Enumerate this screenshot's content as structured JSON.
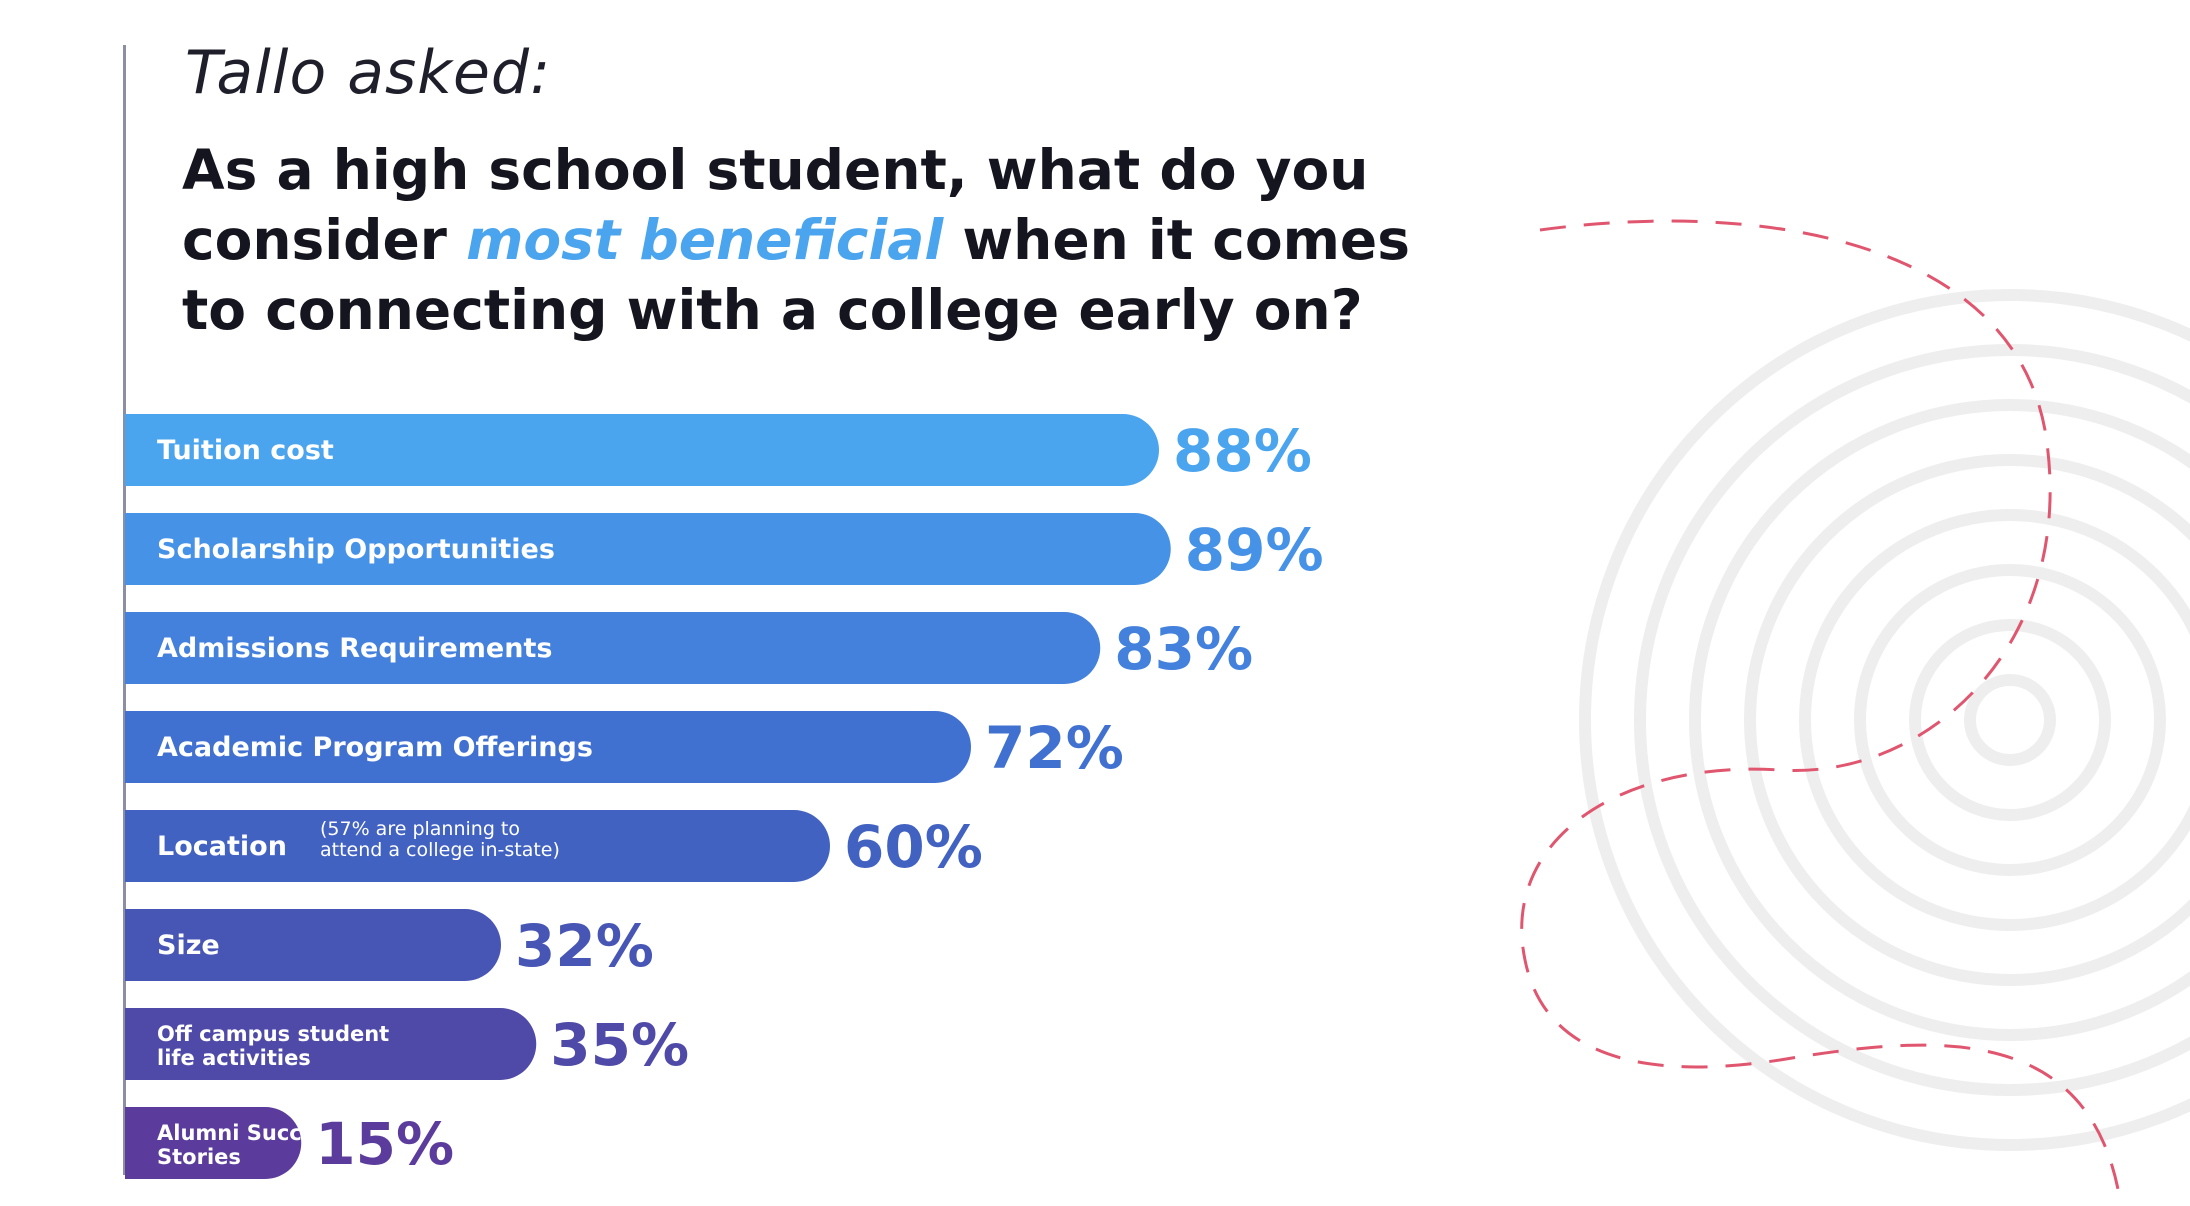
{
  "header": {
    "asked": "Tallo asked:",
    "question_part1": "As a high school student, what do you consider ",
    "question_highlight": "most beneficial",
    "question_part2": " when it comes to connecting with a college early on?"
  },
  "colors": {
    "highlight": "#4aa4ee",
    "decor_dashed": "#e0566f",
    "decor_rings": "#eeeeee",
    "bar_gradient": [
      "#4aa4ee",
      "#4692e6",
      "#4381dc",
      "#4171d0",
      "#4262c2",
      "#4755b5",
      "#4f4aa8",
      "#5b3c9c"
    ]
  },
  "chart_data": {
    "type": "bar",
    "orientation": "horizontal",
    "unit": "%",
    "categories": [
      [
        "Tuition cost"
      ],
      [
        "Scholarship Opportunities"
      ],
      [
        "Admissions Requirements"
      ],
      [
        "Academic Program Offerings"
      ],
      [
        "Location"
      ],
      [
        "Size"
      ],
      [
        "Off campus student",
        "life activities"
      ],
      [
        "Alumni Success",
        "Stories"
      ]
    ],
    "notes": [
      "",
      "",
      "",
      "",
      "(57% are planning to attend a college in-state)",
      "",
      "",
      ""
    ],
    "values": [
      88,
      89,
      83,
      72,
      60,
      32,
      35,
      15
    ],
    "value_labels": [
      "88%",
      "89%",
      "83%",
      "72%",
      "60%",
      "32%",
      "35%",
      "15%"
    ],
    "grid": false,
    "legend": "none"
  }
}
